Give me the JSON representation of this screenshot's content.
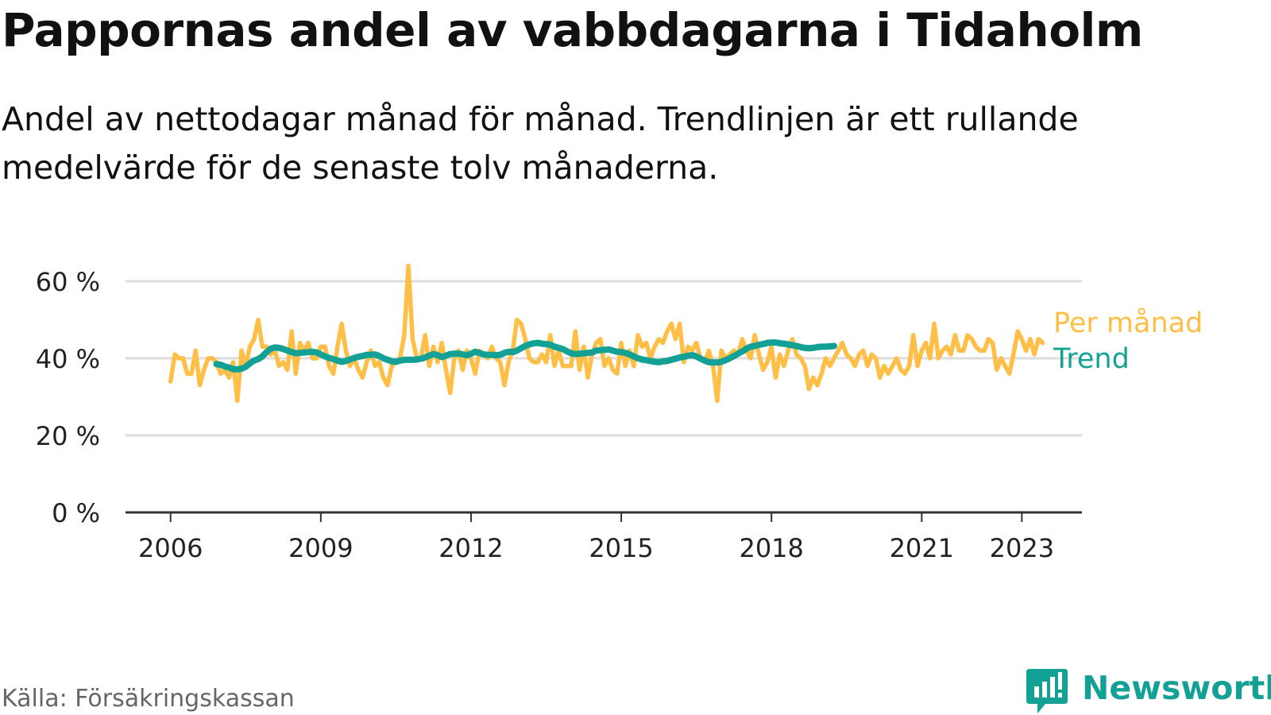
{
  "title": "Pappornas andel av vabbdagarna i Tidaholm",
  "subtitle": "Andel av nettodagar månad för månad. Trendlinjen är ett rullande medelvärde för de senaste tolv månaderna.",
  "source": "Källa: Försäkringskassan",
  "logo": {
    "text": "Newsworthy",
    "icon": "newsworthy-bar-chart-icon",
    "color": "#14a195"
  },
  "colors": {
    "monthly": "#ffbf47",
    "trend": "#14a195",
    "grid": "#dddddd",
    "axis": "#333333",
    "text": "#111111"
  },
  "chart_data": {
    "type": "line",
    "x_unit": "år",
    "xlim": [
      2005.1,
      2024.2
    ],
    "ylim": [
      0,
      60
    ],
    "yticks": [
      0,
      20,
      40,
      60
    ],
    "ytick_labels": [
      "0 %",
      "20 %",
      "40 %",
      "60 %"
    ],
    "xticks": [
      2006,
      2009,
      2012,
      2015,
      2018,
      2021,
      2023
    ],
    "xtick_labels": [
      "2006",
      "2009",
      "2012",
      "2015",
      "2018",
      "2021",
      "2023"
    ],
    "grid": true,
    "legend": "inline-right",
    "series": [
      {
        "name": "Per månad",
        "x_start": 2006.0,
        "x_step": 0.08333,
        "values": [
          34,
          41,
          40,
          40,
          36,
          36,
          42,
          33,
          37,
          40,
          40,
          39,
          36,
          37,
          35,
          39,
          29,
          42,
          38,
          43,
          45,
          50,
          43,
          43,
          41,
          42,
          38,
          39,
          37,
          47,
          36,
          44,
          42,
          44,
          40,
          40,
          43,
          43,
          38,
          36,
          43,
          49,
          42,
          38,
          40,
          37,
          35,
          39,
          42,
          38,
          39,
          35,
          33,
          38,
          39,
          40,
          46,
          64,
          45,
          40,
          40,
          46,
          38,
          43,
          39,
          44,
          37,
          31,
          40,
          42,
          37,
          42,
          40,
          36,
          42,
          41,
          40,
          43,
          40,
          39,
          33,
          39,
          42,
          50,
          49,
          45,
          40,
          39,
          39,
          41,
          39,
          46,
          38,
          42,
          38,
          38,
          38,
          47,
          37,
          43,
          35,
          41,
          44,
          45,
          38,
          40,
          37,
          36,
          44,
          38,
          42,
          38,
          46,
          43,
          44,
          40,
          43,
          45,
          44,
          47,
          49,
          45,
          49,
          39,
          43,
          42,
          44,
          40,
          39,
          42,
          38,
          29,
          42,
          40,
          41,
          42,
          41,
          45,
          42,
          40,
          46,
          41,
          37,
          39,
          43,
          35,
          41,
          38,
          42,
          45,
          41,
          40,
          38,
          32,
          35,
          33,
          36,
          40,
          38,
          40,
          42,
          44,
          41,
          40,
          38,
          41,
          42,
          38,
          41,
          40,
          35,
          38,
          36,
          38,
          40,
          37,
          36,
          38,
          46,
          38,
          42,
          44,
          40,
          49,
          40,
          42,
          43,
          41,
          46,
          42,
          42,
          46,
          45,
          43,
          42,
          42,
          45,
          44,
          37,
          40,
          38,
          36,
          41,
          47,
          45,
          42,
          45,
          41,
          45,
          44
        ]
      },
      {
        "name": "Trend",
        "x_start": 2006.917,
        "x_step": 0.08333,
        "values": [
          38.5,
          38.3,
          37.9,
          37.6,
          37.2,
          37.1,
          37.3,
          37.8,
          38.7,
          39.4,
          39.8,
          40.5,
          41.6,
          42.5,
          42.8,
          42.7,
          42.4,
          42.0,
          41.6,
          41.3,
          41.4,
          41.5,
          41.6,
          41.7,
          41.5,
          41.0,
          40.5,
          40.1,
          39.8,
          39.4,
          39.1,
          39.3,
          39.7,
          40.1,
          40.4,
          40.6,
          40.9,
          40.9,
          41.0,
          40.6,
          40.0,
          39.6,
          39.2,
          39.1,
          39.4,
          39.6,
          39.6,
          39.6,
          39.7,
          39.9,
          40.2,
          40.7,
          41.1,
          40.8,
          40.3,
          40.7,
          41.1,
          41.2,
          41.2,
          41.0,
          40.8,
          41.2,
          41.7,
          41.4,
          41.0,
          40.9,
          40.9,
          40.8,
          40.9,
          41.4,
          41.7,
          41.6,
          42.0,
          42.6,
          43.2,
          43.6,
          43.9,
          44.0,
          43.8,
          43.7,
          43.5,
          43.0,
          42.7,
          42.4,
          41.8,
          41.3,
          41.1,
          41.2,
          41.3,
          41.4,
          41.5,
          42.0,
          42.1,
          42.2,
          42.3,
          42.0,
          41.7,
          41.6,
          41.4,
          41.0,
          40.5,
          40.0,
          39.7,
          39.5,
          39.3,
          39.1,
          39.0,
          39.2,
          39.3,
          39.6,
          39.9,
          40.2,
          40.4,
          40.7,
          40.8,
          40.5,
          39.9,
          39.4,
          39.0,
          38.9,
          38.9,
          39.1,
          39.5,
          40.0,
          40.6,
          41.2,
          41.8,
          42.5,
          43.0,
          43.2,
          43.5,
          43.7,
          44.0,
          44.1,
          44.1,
          43.9,
          43.8,
          43.6,
          43.4,
          43.2,
          42.9,
          42.7,
          42.6,
          42.7,
          42.9,
          43.0,
          43.0,
          43.1,
          43.2
        ]
      }
    ]
  }
}
